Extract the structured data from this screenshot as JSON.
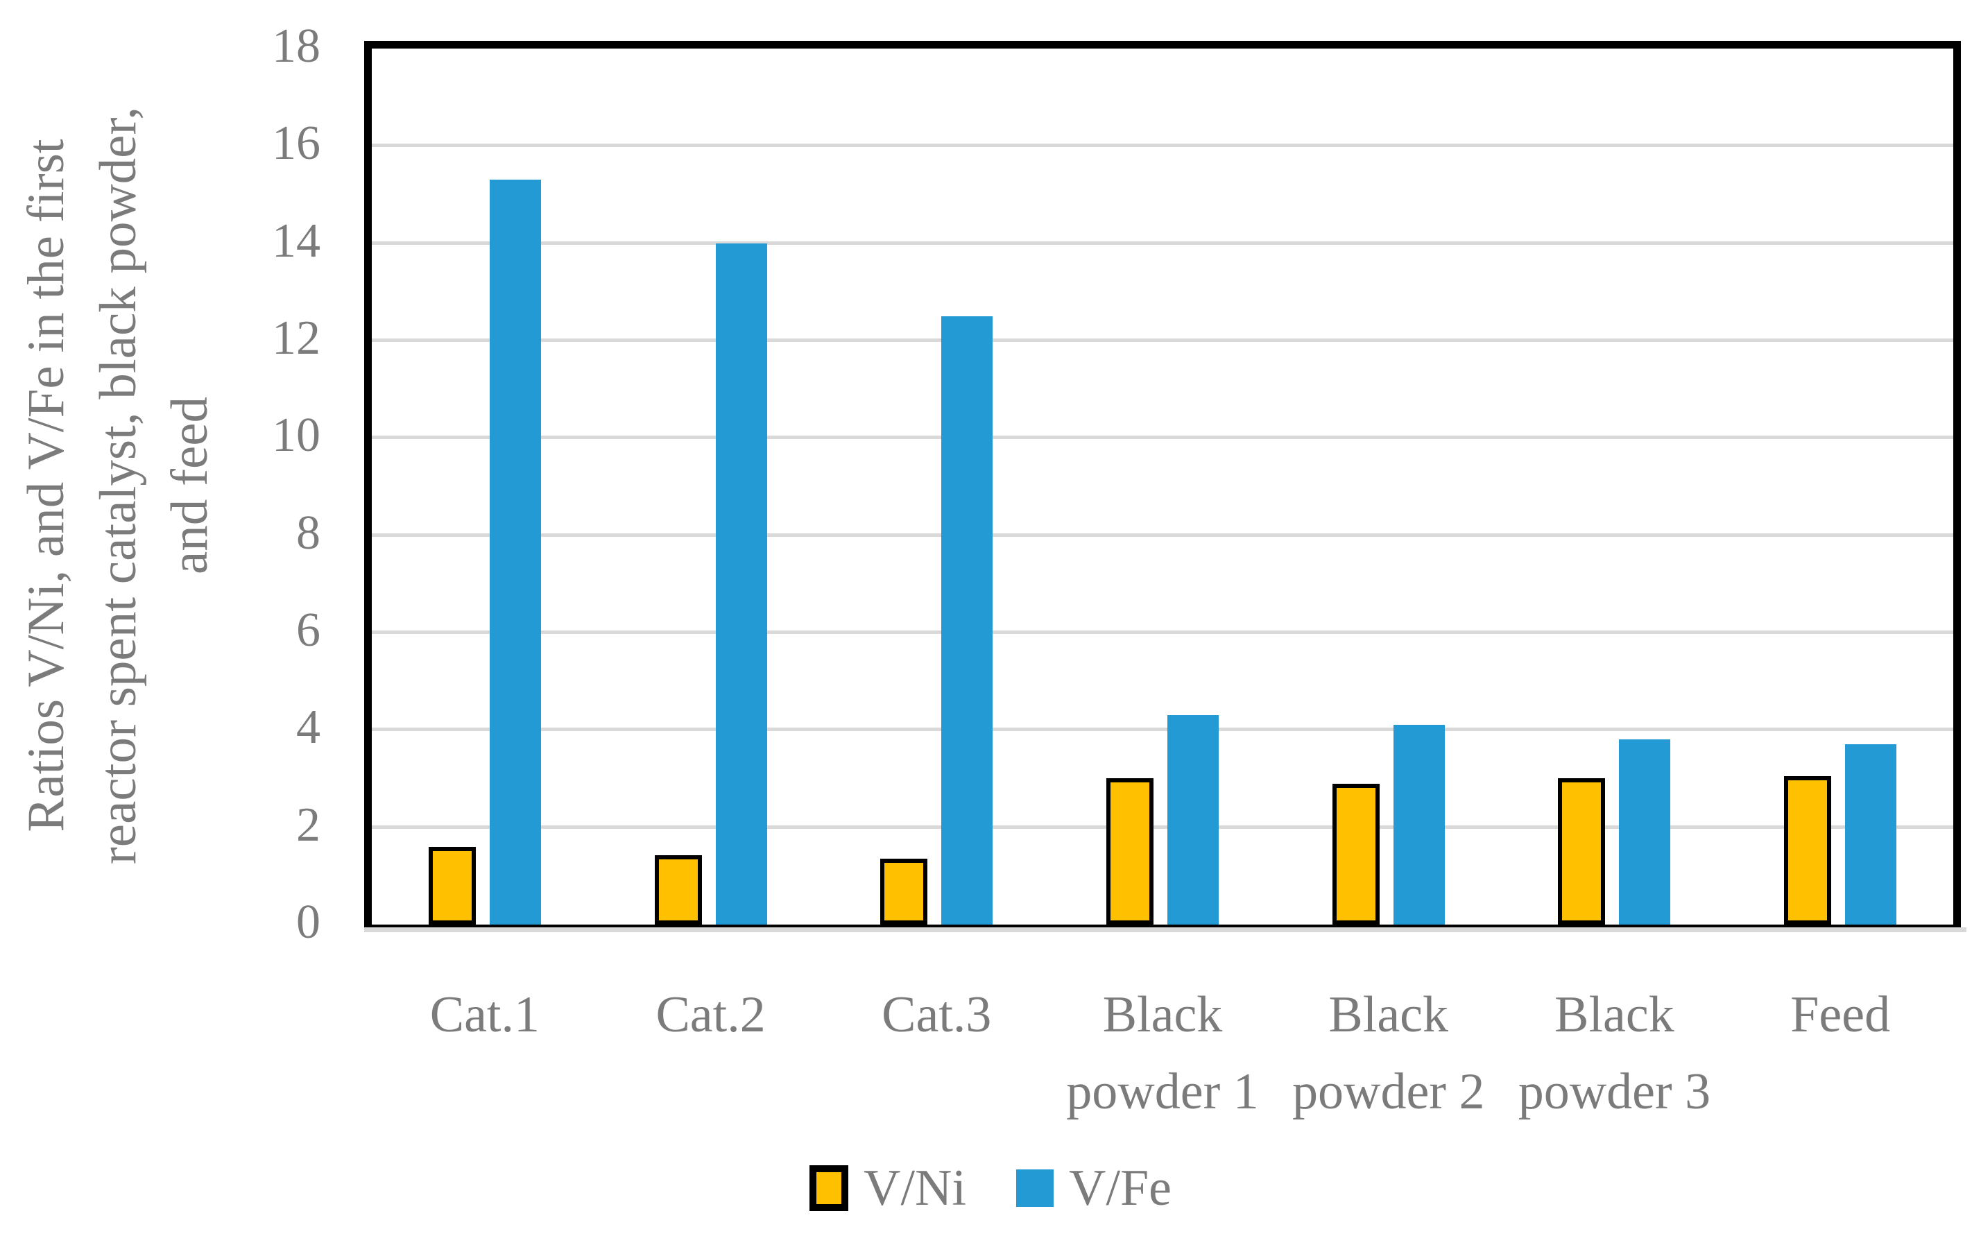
{
  "chart_data": {
    "type": "bar",
    "title": "",
    "ylabel": "Ratios V/Ni, and V/Fe in the first reactor spent catalyst, black powder, and feed",
    "ylabel_lines": [
      "Ratios V/Ni, and V/Fe in the first",
      "reactor spent catalyst, black powder,",
      "and feed"
    ],
    "xlabel": "",
    "categories": [
      "Cat.1",
      "Cat.2",
      "Cat.3",
      "Black powder 1",
      "Black powder 2",
      "Black powder 3",
      "Feed"
    ],
    "category_label_lines": [
      [
        "Cat.1"
      ],
      [
        "Cat.2"
      ],
      [
        "Cat.3"
      ],
      [
        "Black",
        "powder 1"
      ],
      [
        "Black",
        "powder 2"
      ],
      [
        "Black",
        "powder 3"
      ],
      [
        "Feed"
      ]
    ],
    "series": [
      {
        "name": "V/Ni",
        "values": [
          1.6,
          1.42,
          1.36,
          3.0,
          2.9,
          3.0,
          3.05
        ]
      },
      {
        "name": "V/Fe",
        "values": [
          15.3,
          14.0,
          12.5,
          4.3,
          4.1,
          3.8,
          3.7
        ]
      }
    ],
    "ylim": [
      0,
      18
    ],
    "yticks": [
      0,
      2,
      4,
      6,
      8,
      10,
      12,
      14,
      16,
      18
    ],
    "grid": true,
    "legend_position": "bottom",
    "colors": {
      "vni_fill": "#ffc000",
      "vni_border": "#000000",
      "vfe_fill": "#239ad3",
      "grid": "#d9d9d9",
      "axis_text": "#7b7b7b",
      "plot_border": "#000000"
    }
  }
}
